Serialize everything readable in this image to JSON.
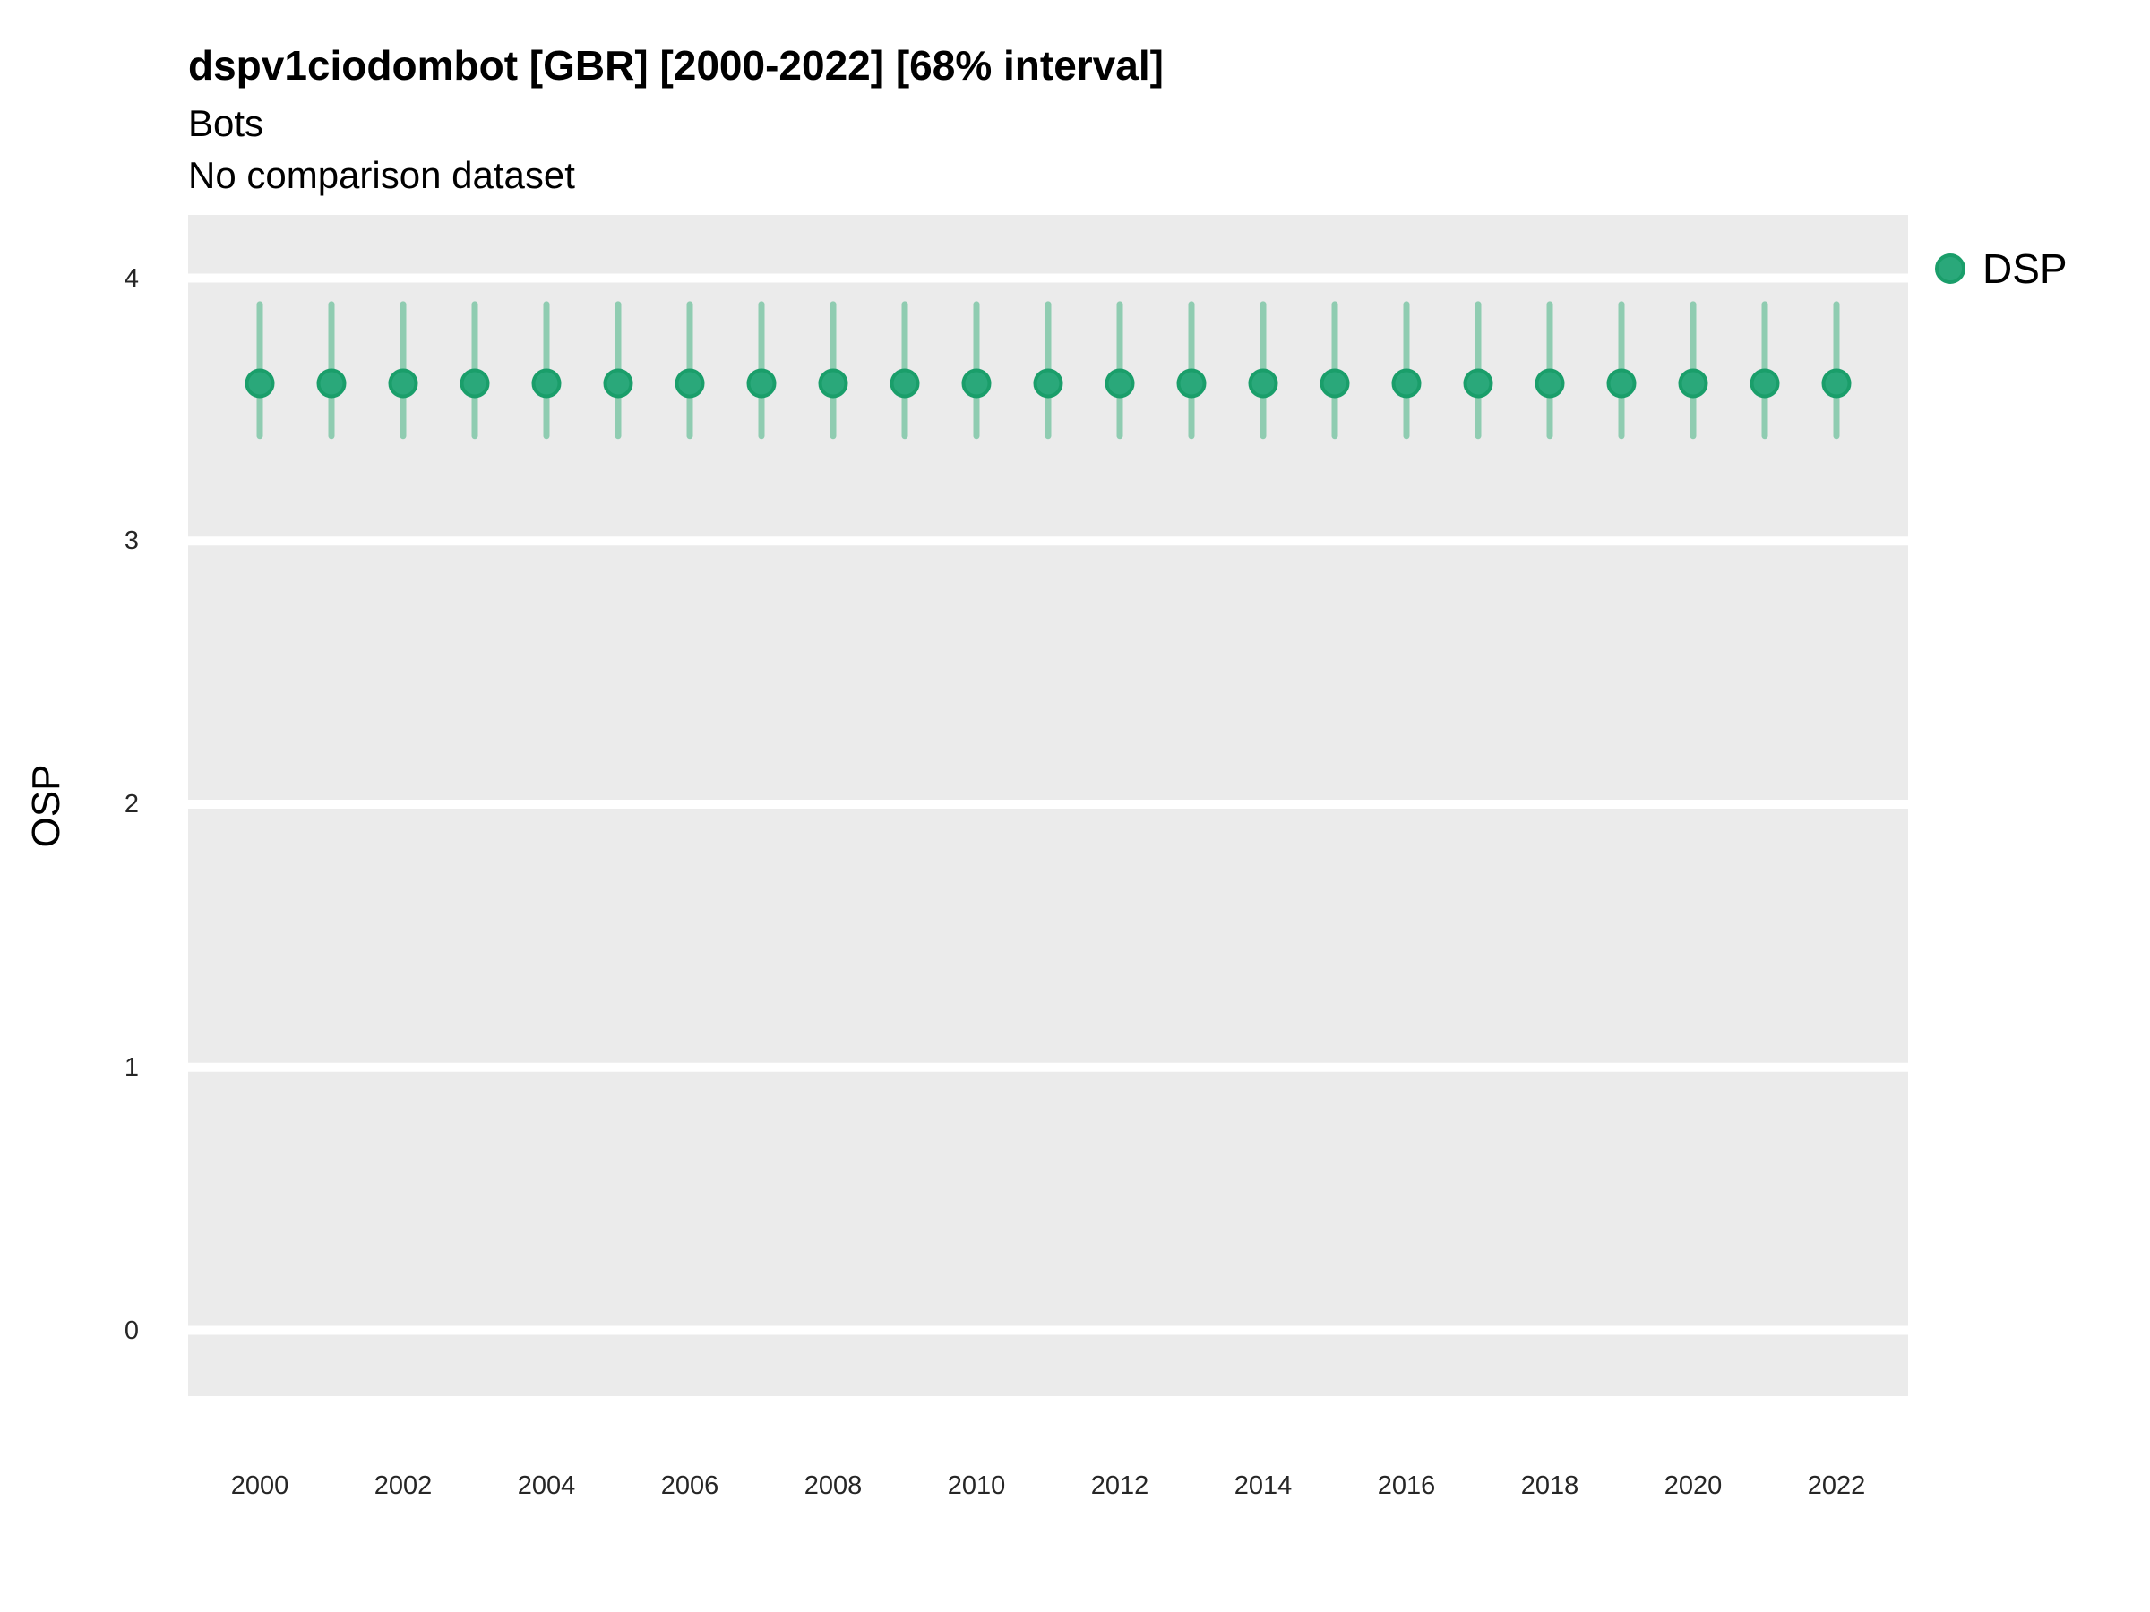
{
  "header": {
    "title": "dspv1ciodombot [GBR] [2000-2022] [68% interval]",
    "subtitle": "Bots",
    "comparison_note": "No comparison dataset"
  },
  "legend": {
    "position": "right-top",
    "items": [
      {
        "label": "DSP",
        "marker": "filled-circle",
        "color": "#2aa87a"
      }
    ]
  },
  "colors": {
    "point_fill": "#2aa87a",
    "point_stroke": "#1a9e6a",
    "interval_bar": "#8fccb1",
    "panel_bg": "#ebebeb",
    "gridline": "#ffffff",
    "tick_text": "#262626",
    "text": "#000000"
  },
  "chart_data": {
    "type": "scatter",
    "title": "dspv1ciodombot [GBR] [2000-2022] [68% interval]",
    "subtitle": "Bots",
    "note": "No comparison dataset",
    "interval_label": "68% interval",
    "xlabel": "",
    "ylabel": "OSP",
    "grid": "horizontal-white-on-gray",
    "legend_position": "right-top",
    "x_domain": [
      1999,
      2023
    ],
    "y_domain": [
      -0.25,
      4.24
    ],
    "x_ticks": [
      2000,
      2002,
      2004,
      2006,
      2008,
      2010,
      2012,
      2014,
      2016,
      2018,
      2020,
      2022
    ],
    "y_ticks": [
      0,
      1,
      2,
      3,
      4
    ],
    "x": [
      2000,
      2001,
      2002,
      2003,
      2004,
      2005,
      2006,
      2007,
      2008,
      2009,
      2010,
      2011,
      2012,
      2013,
      2014,
      2015,
      2016,
      2017,
      2018,
      2019,
      2020,
      2021,
      2022
    ],
    "series": [
      {
        "name": "DSP",
        "values": [
          3.6,
          3.6,
          3.6,
          3.6,
          3.6,
          3.6,
          3.6,
          3.6,
          3.6,
          3.6,
          3.6,
          3.6,
          3.6,
          3.6,
          3.6,
          3.6,
          3.6,
          3.6,
          3.6,
          3.6,
          3.6,
          3.6,
          3.6
        ],
        "lower": [
          3.4,
          3.4,
          3.4,
          3.4,
          3.4,
          3.4,
          3.4,
          3.4,
          3.4,
          3.4,
          3.4,
          3.4,
          3.4,
          3.4,
          3.4,
          3.4,
          3.4,
          3.4,
          3.4,
          3.4,
          3.4,
          3.4,
          3.4
        ],
        "upper": [
          3.9,
          3.9,
          3.9,
          3.9,
          3.9,
          3.9,
          3.9,
          3.9,
          3.9,
          3.9,
          3.9,
          3.9,
          3.9,
          3.9,
          3.9,
          3.9,
          3.9,
          3.9,
          3.9,
          3.9,
          3.9,
          3.9,
          3.9
        ]
      }
    ]
  }
}
